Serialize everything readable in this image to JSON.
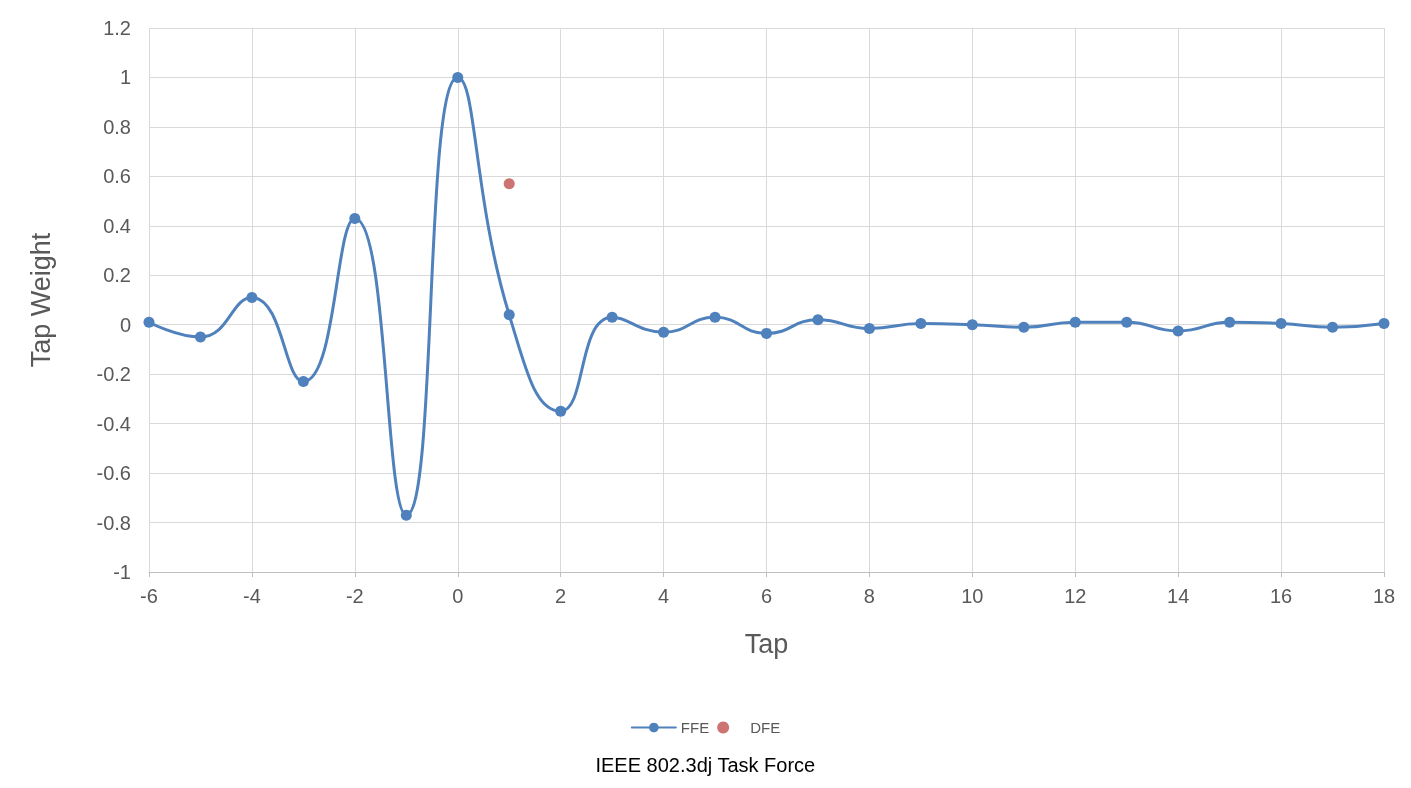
{
  "chart_data": {
    "type": "line",
    "xlabel": "Tap",
    "ylabel": "Tap Weight",
    "annotations": [
      "IEEE 802.3dj Task Force"
    ],
    "xlim": [
      -6,
      18
    ],
    "xticks": [
      -6,
      -4,
      -2,
      0,
      2,
      4,
      6,
      8,
      10,
      12,
      14,
      16,
      18
    ],
    "ylim": [
      -1,
      1.2
    ],
    "yticks": [
      -1,
      -0.8,
      -0.6,
      -0.4,
      -0.2,
      0,
      0.2,
      0.4,
      0.6,
      0.8,
      1,
      1.2
    ],
    "grid": true,
    "legend": "bottom",
    "marker": "circle",
    "line_style": "solid",
    "series": [
      {
        "name": "FFE",
        "color": "#4f81bd",
        "x": [
          -6,
          -5,
          -4,
          -3,
          -2,
          -1,
          0,
          1,
          2,
          3,
          4,
          5,
          6,
          7,
          8,
          9,
          10,
          11,
          12,
          13,
          14,
          15,
          16,
          17,
          18
        ],
        "values": [
          0.01,
          -0.05,
          0.11,
          -0.23,
          0.43,
          -0.77,
          1.0,
          0.04,
          -0.35,
          0.03,
          -0.03,
          0.03,
          -0.035,
          0.02,
          -0.015,
          0.005,
          0,
          -0.01,
          0.01,
          0.01,
          -0.025,
          0.01,
          0.005,
          -0.01,
          0.005
        ]
      },
      {
        "name": "DFE",
        "type": "scatter",
        "color": "#c0504d",
        "x": [
          1
        ],
        "values": [
          0.57
        ]
      }
    ]
  }
}
